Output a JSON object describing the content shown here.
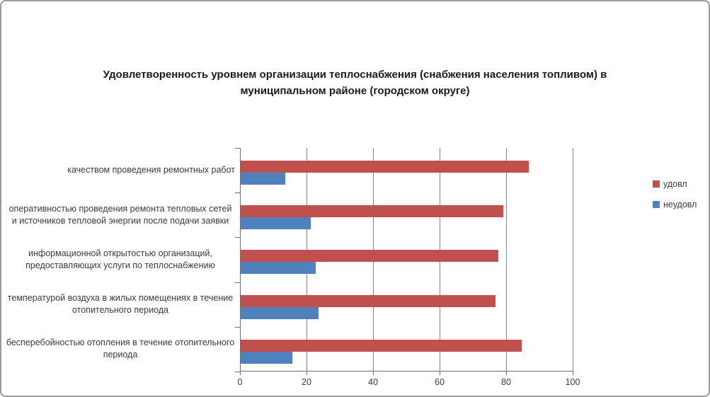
{
  "title": "Удовлетворенность уровнем организации теплоснабжения (снабжения населения топливом) в муниципальном районе (городском округе)",
  "chart_data": {
    "type": "bar",
    "orientation": "horizontal",
    "title": "Удовлетворенность уровнем организации теплоснабжения (снабжения населения топливом) в муниципальном районе (городском округе)",
    "categories": [
      "качеством проведения ремонтных работ",
      "оперативностью проведения ремонта тепловых сетей и источников тепловой энергии после подачи заявки",
      "информационной открытостью организаций, предоставляющих услуги по теплоснабжению",
      "температурой воздуха в жилых помещениях в течение отопительного периода",
      "бесперебойностью отопления в течение отопительного периода"
    ],
    "series": [
      {
        "name": "удовл",
        "color": "#c0504d",
        "values": [
          86.5,
          79.0,
          77.5,
          76.5,
          84.5
        ]
      },
      {
        "name": "неудовл",
        "color": "#4f81bd",
        "values": [
          13.5,
          21.0,
          22.5,
          23.5,
          15.5
        ]
      }
    ],
    "xlim": [
      0,
      100
    ],
    "x_ticks": [
      0,
      20,
      40,
      60,
      80,
      100
    ],
    "grid": "vertical",
    "legend_position": "right",
    "xlabel": "",
    "ylabel": ""
  },
  "legend": {
    "items": [
      {
        "label": "удовл",
        "color": "#c0504d"
      },
      {
        "label": "неудовл",
        "color": "#4f81bd"
      }
    ]
  },
  "colors": {
    "bar_red": "#c0504d",
    "bar_blue": "#4f81bd",
    "gridline": "#848484",
    "axis": "#6f6f6f",
    "border": "#9a9a9a",
    "text": "#3a3a3a"
  }
}
